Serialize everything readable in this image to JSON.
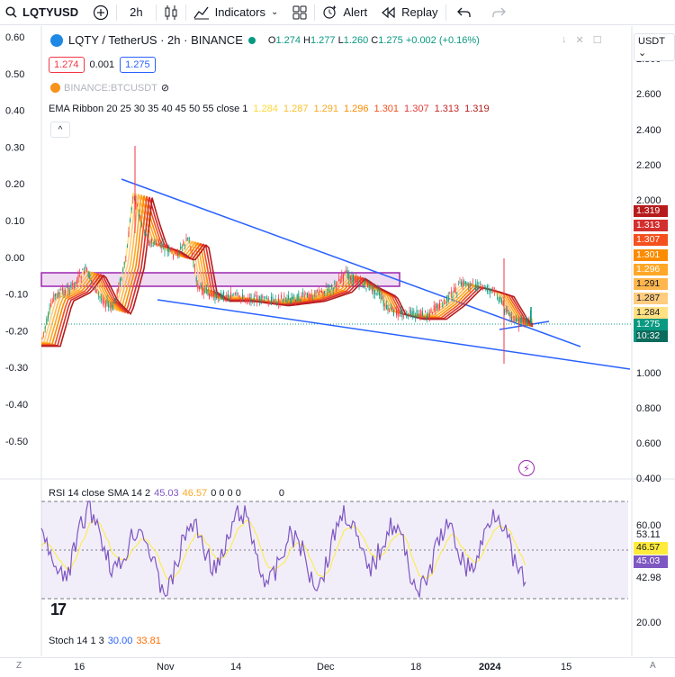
{
  "toolbar": {
    "symbol": "LQTYUSD",
    "add_symbol": "+",
    "interval": "2h",
    "indicators": "Indicators",
    "alert": "Alert",
    "replay": "Replay"
  },
  "legend": {
    "title": "LQTY / TetherUS · 2h · BINANCE",
    "open_label": "O",
    "open": "1.274",
    "high_label": "H",
    "high": "1.277",
    "low_label": "L",
    "low": "1.260",
    "close_label": "C",
    "close": "1.275",
    "change": "+0.002 (+0.16%)",
    "bid": "1.274",
    "spread": "0.001",
    "ask": "1.275",
    "compare": "BINANCE:BTCUSDT",
    "ema_title": "EMA Ribbon 20 25 30 35 40 45 50 55 close 1",
    "ema_values": [
      "1.284",
      "1.287",
      "1.291",
      "1.296",
      "1.301",
      "1.307",
      "1.313",
      "1.319"
    ],
    "currency": "USDT",
    "collapse": "^"
  },
  "left_axis": [
    "0.60",
    "0.50",
    "0.40",
    "0.30",
    "0.20",
    "0.10",
    "0.00",
    "-0.10",
    "-0.20",
    "-0.30",
    "-0.40",
    "-0.50"
  ],
  "right_axis": [
    "2.800",
    "2.600",
    "2.400",
    "2.200",
    "2.000",
    "1.000",
    "0.800",
    "0.600",
    "0.400"
  ],
  "right_tags": [
    {
      "value": "1.319",
      "color": "#b71c1c"
    },
    {
      "value": "1.313",
      "color": "#d32f2f"
    },
    {
      "value": "1.307",
      "color": "#f4511e"
    },
    {
      "value": "1.301",
      "color": "#fb8c00"
    },
    {
      "value": "1.296",
      "color": "#ffa726"
    },
    {
      "value": "1.291",
      "color": "#ffb74d"
    },
    {
      "value": "1.287",
      "color": "#ffcc80"
    },
    {
      "value": "1.284",
      "color": "#ffe082"
    }
  ],
  "last_price": {
    "value": "1.275",
    "countdown": "10:32"
  },
  "rsi": {
    "title": "RSI 14 close SMA 14 2",
    "rsi_value": "45.03",
    "sma_value": "46.57",
    "zeros": "0 0 0 0",
    "extra": "0",
    "axis": [
      "60.00",
      "53.11",
      "42.98",
      "20.00"
    ],
    "tag_sma": "46.57",
    "tag_rsi": "45.03"
  },
  "stoch": {
    "title": "Stoch 14 1 3",
    "k": "30.00",
    "d": "33.81"
  },
  "time_axis": [
    "16",
    "Nov",
    "14",
    "Dec",
    "18",
    "2024",
    "15"
  ],
  "colors": {
    "up": "#089981",
    "down": "#f23645",
    "trend": "#2962ff",
    "rsi": "#7e57c2",
    "rsi_sma": "#ffeb3b",
    "zone": "#9c27b0"
  }
}
